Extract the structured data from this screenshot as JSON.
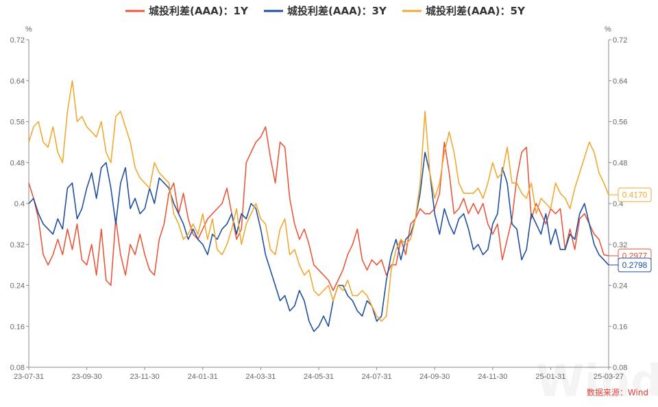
{
  "chart_data": {
    "type": "line",
    "title": "",
    "x_ticks": [
      "23-07-31",
      "23-09-30",
      "23-11-30",
      "24-01-31",
      "24-03-31",
      "24-05-31",
      "24-07-31",
      "24-09-30",
      "24-11-30",
      "25-01-31",
      "25-03-27"
    ],
    "y_unit_left": "%",
    "y_unit_right": "%",
    "ylim": [
      0.08,
      0.72
    ],
    "y_ticks": [
      "0.08",
      "0.16",
      "0.24",
      "0.32",
      "0.4",
      "0.48",
      "0.56",
      "0.64",
      "0.72"
    ],
    "legend_placement": "top-center",
    "grid": false,
    "series": [
      {
        "name": "城投利差(AAA)：1Y",
        "color": "#e8573a",
        "end_label": "0.2977",
        "values": [
          0.44,
          0.41,
          0.37,
          0.3,
          0.28,
          0.3,
          0.33,
          0.3,
          0.35,
          0.31,
          0.36,
          0.29,
          0.28,
          0.32,
          0.26,
          0.35,
          0.25,
          0.24,
          0.37,
          0.3,
          0.26,
          0.32,
          0.3,
          0.34,
          0.3,
          0.27,
          0.26,
          0.33,
          0.36,
          0.42,
          0.44,
          0.38,
          0.42,
          0.37,
          0.34,
          0.33,
          0.35,
          0.37,
          0.38,
          0.39,
          0.4,
          0.43,
          0.38,
          0.33,
          0.35,
          0.48,
          0.5,
          0.52,
          0.53,
          0.55,
          0.49,
          0.44,
          0.52,
          0.51,
          0.41,
          0.36,
          0.33,
          0.35,
          0.32,
          0.28,
          0.27,
          0.26,
          0.25,
          0.23,
          0.25,
          0.27,
          0.3,
          0.32,
          0.35,
          0.29,
          0.27,
          0.29,
          0.28,
          0.29,
          0.26,
          0.28,
          0.28,
          0.33,
          0.3,
          0.36,
          0.37,
          0.39,
          0.38,
          0.38,
          0.39,
          0.42,
          0.52,
          0.46,
          0.38,
          0.39,
          0.41,
          0.38,
          0.4,
          0.38,
          0.4,
          0.36,
          0.34,
          0.36,
          0.29,
          0.33,
          0.37,
          0.45,
          0.5,
          0.51,
          0.37,
          0.4,
          0.38,
          0.36,
          0.39,
          0.38,
          0.39,
          0.31,
          0.35,
          0.31,
          0.37,
          0.38,
          0.36,
          0.34,
          0.33,
          0.3,
          0.2977
        ]
      },
      {
        "name": "城投利差(AAA)：3Y",
        "color": "#1f4e9c",
        "end_label": "0.2798",
        "values": [
          0.4,
          0.41,
          0.38,
          0.36,
          0.35,
          0.34,
          0.37,
          0.35,
          0.43,
          0.44,
          0.37,
          0.39,
          0.43,
          0.46,
          0.41,
          0.47,
          0.48,
          0.43,
          0.36,
          0.44,
          0.47,
          0.39,
          0.41,
          0.38,
          0.39,
          0.43,
          0.4,
          0.45,
          0.44,
          0.43,
          0.4,
          0.38,
          0.36,
          0.33,
          0.35,
          0.33,
          0.32,
          0.3,
          0.34,
          0.33,
          0.35,
          0.36,
          0.38,
          0.34,
          0.38,
          0.37,
          0.4,
          0.39,
          0.35,
          0.3,
          0.27,
          0.24,
          0.21,
          0.22,
          0.19,
          0.2,
          0.23,
          0.21,
          0.17,
          0.15,
          0.16,
          0.18,
          0.16,
          0.21,
          0.24,
          0.24,
          0.22,
          0.21,
          0.19,
          0.18,
          0.21,
          0.2,
          0.17,
          0.18,
          0.25,
          0.3,
          0.33,
          0.29,
          0.33,
          0.34,
          0.37,
          0.42,
          0.5,
          0.46,
          0.38,
          0.34,
          0.39,
          0.36,
          0.34,
          0.37,
          0.38,
          0.35,
          0.31,
          0.32,
          0.3,
          0.31,
          0.36,
          0.38,
          0.47,
          0.44,
          0.36,
          0.35,
          0.29,
          0.31,
          0.38,
          0.36,
          0.34,
          0.38,
          0.32,
          0.35,
          0.31,
          0.31,
          0.34,
          0.33,
          0.38,
          0.4,
          0.36,
          0.32,
          0.3,
          0.29,
          0.2798
        ]
      },
      {
        "name": "城投利差(AAA)：5Y",
        "color": "#f0a830",
        "end_label": "0.4170",
        "values": [
          0.52,
          0.55,
          0.56,
          0.52,
          0.51,
          0.55,
          0.5,
          0.48,
          0.58,
          0.64,
          0.56,
          0.57,
          0.55,
          0.54,
          0.53,
          0.56,
          0.5,
          0.48,
          0.57,
          0.58,
          0.55,
          0.52,
          0.47,
          0.45,
          0.44,
          0.43,
          0.48,
          0.46,
          0.45,
          0.44,
          0.38,
          0.36,
          0.33,
          0.34,
          0.36,
          0.34,
          0.38,
          0.33,
          0.37,
          0.31,
          0.3,
          0.32,
          0.35,
          0.39,
          0.32,
          0.36,
          0.38,
          0.4,
          0.37,
          0.36,
          0.31,
          0.3,
          0.35,
          0.37,
          0.3,
          0.31,
          0.28,
          0.26,
          0.27,
          0.23,
          0.22,
          0.23,
          0.24,
          0.21,
          0.24,
          0.23,
          0.25,
          0.22,
          0.22,
          0.23,
          0.22,
          0.2,
          0.18,
          0.17,
          0.18,
          0.27,
          0.31,
          0.33,
          0.32,
          0.33,
          0.37,
          0.44,
          0.58,
          0.46,
          0.41,
          0.44,
          0.5,
          0.54,
          0.5,
          0.44,
          0.42,
          0.42,
          0.42,
          0.43,
          0.41,
          0.44,
          0.48,
          0.45,
          0.46,
          0.51,
          0.44,
          0.44,
          0.42,
          0.41,
          0.44,
          0.38,
          0.41,
          0.4,
          0.39,
          0.44,
          0.42,
          0.41,
          0.39,
          0.43,
          0.46,
          0.49,
          0.52,
          0.5,
          0.46,
          0.44,
          0.417
        ]
      }
    ]
  },
  "footer": {
    "source": "数据来源：Wind",
    "watermark": "Wind"
  }
}
